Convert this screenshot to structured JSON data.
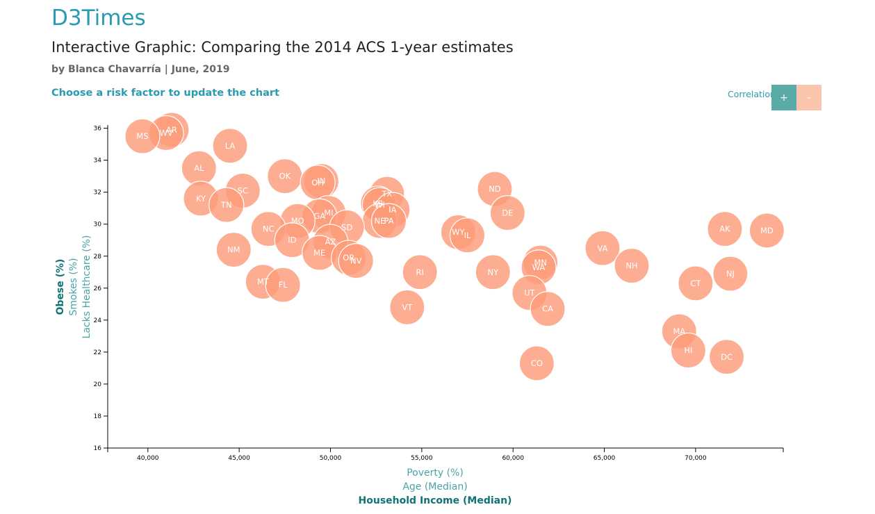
{
  "header": {
    "brand": "D3Times",
    "title": "Interactive Graphic: Comparing the 2014 ACS 1-year estimates",
    "byline": "by Blanca Chavarría | June, 2019",
    "prompt": "Choose a risk factor to update the chart"
  },
  "correlation": {
    "label": "Correlation",
    "plus_label": "+",
    "minus_label": "-"
  },
  "colors": {
    "brand": "#2a9bb0",
    "circle": "#fc9b79",
    "active_axis": "#117377",
    "inactive_axis": "#4aa3a8",
    "plus_button": "#5aaaa7",
    "minus_button": "#fbc5ad"
  },
  "chart_data": {
    "type": "scatter",
    "x_axis_labels": [
      {
        "text": "Poverty (%)",
        "active": false
      },
      {
        "text": "Age (Median)",
        "active": false
      },
      {
        "text": "Household Income (Median)",
        "active": true
      }
    ],
    "y_axis_labels": [
      {
        "text": "Obese (%)",
        "active": true
      },
      {
        "text": "Smokes (%)",
        "active": false
      },
      {
        "text": "Lacks Healthcare (%)",
        "active": false
      }
    ],
    "xlim": [
      37800,
      74800
    ],
    "ylim": [
      16,
      36.2
    ],
    "x_ticks": [
      40000,
      45000,
      50000,
      55000,
      60000,
      65000,
      70000
    ],
    "x_tick_labels": [
      "40,000",
      "45,000",
      "50,000",
      "55,000",
      "60,000",
      "65,000",
      "70,000"
    ],
    "y_ticks": [
      16,
      18,
      20,
      22,
      24,
      26,
      28,
      30,
      32,
      34,
      36
    ],
    "y_tick_labels": [
      "16",
      "18",
      "20",
      "22",
      "24",
      "26",
      "28",
      "30",
      "32",
      "34",
      "36"
    ],
    "points": [
      {
        "abbr": "AR",
        "x": 41300,
        "y": 35.9
      },
      {
        "abbr": "WV",
        "x": 41000,
        "y": 35.7
      },
      {
        "abbr": "MS",
        "x": 39700,
        "y": 35.5
      },
      {
        "abbr": "LA",
        "x": 44500,
        "y": 34.9
      },
      {
        "abbr": "AL",
        "x": 42800,
        "y": 33.5
      },
      {
        "abbr": "OK",
        "x": 47500,
        "y": 33.0
      },
      {
        "abbr": "IN",
        "x": 49500,
        "y": 32.7
      },
      {
        "abbr": "OH",
        "x": 49300,
        "y": 32.6
      },
      {
        "abbr": "SC",
        "x": 45200,
        "y": 32.1
      },
      {
        "abbr": "TX",
        "x": 53100,
        "y": 31.9
      },
      {
        "abbr": "ND",
        "x": 59000,
        "y": 32.2
      },
      {
        "abbr": "KY",
        "x": 42900,
        "y": 31.6
      },
      {
        "abbr": "TN",
        "x": 44300,
        "y": 31.2
      },
      {
        "abbr": "KS",
        "x": 52600,
        "y": 31.3
      },
      {
        "abbr": "WI",
        "x": 52700,
        "y": 31.2
      },
      {
        "abbr": "IA",
        "x": 53400,
        "y": 30.9
      },
      {
        "abbr": "DE",
        "x": 59700,
        "y": 30.7
      },
      {
        "abbr": "MI",
        "x": 49900,
        "y": 30.7
      },
      {
        "abbr": "GA",
        "x": 49400,
        "y": 30.5
      },
      {
        "abbr": "MO",
        "x": 48200,
        "y": 30.2
      },
      {
        "abbr": "NE",
        "x": 52700,
        "y": 30.2
      },
      {
        "abbr": "PA",
        "x": 53200,
        "y": 30.2
      },
      {
        "abbr": "SD",
        "x": 50900,
        "y": 29.8
      },
      {
        "abbr": "NC",
        "x": 46600,
        "y": 29.7
      },
      {
        "abbr": "AK",
        "x": 71600,
        "y": 29.7
      },
      {
        "abbr": "MD",
        "x": 73900,
        "y": 29.6
      },
      {
        "abbr": "WY",
        "x": 57000,
        "y": 29.5
      },
      {
        "abbr": "IL",
        "x": 57500,
        "y": 29.3
      },
      {
        "abbr": "ID",
        "x": 47900,
        "y": 29.0
      },
      {
        "abbr": "AZ",
        "x": 50000,
        "y": 28.9
      },
      {
        "abbr": "VA",
        "x": 64900,
        "y": 28.5
      },
      {
        "abbr": "NM",
        "x": 44700,
        "y": 28.4
      },
      {
        "abbr": "ME",
        "x": 49400,
        "y": 28.2
      },
      {
        "abbr": "OR",
        "x": 51000,
        "y": 27.9
      },
      {
        "abbr": "NV",
        "x": 51400,
        "y": 27.7
      },
      {
        "abbr": "MN",
        "x": 61500,
        "y": 27.6
      },
      {
        "abbr": "WA",
        "x": 61400,
        "y": 27.3
      },
      {
        "abbr": "NH",
        "x": 66500,
        "y": 27.4
      },
      {
        "abbr": "RI",
        "x": 54900,
        "y": 27.0
      },
      {
        "abbr": "NY",
        "x": 58900,
        "y": 27.0
      },
      {
        "abbr": "NJ",
        "x": 71900,
        "y": 26.9
      },
      {
        "abbr": "MT",
        "x": 46300,
        "y": 26.4
      },
      {
        "abbr": "CT",
        "x": 70000,
        "y": 26.3
      },
      {
        "abbr": "FL",
        "x": 47400,
        "y": 26.2
      },
      {
        "abbr": "UT",
        "x": 60900,
        "y": 25.7
      },
      {
        "abbr": "VT",
        "x": 54200,
        "y": 24.8
      },
      {
        "abbr": "CA",
        "x": 61900,
        "y": 24.7
      },
      {
        "abbr": "MA",
        "x": 69100,
        "y": 23.3
      },
      {
        "abbr": "HI",
        "x": 69600,
        "y": 22.1
      },
      {
        "abbr": "DC",
        "x": 71700,
        "y": 21.7
      },
      {
        "abbr": "CO",
        "x": 61300,
        "y": 21.3
      }
    ]
  }
}
